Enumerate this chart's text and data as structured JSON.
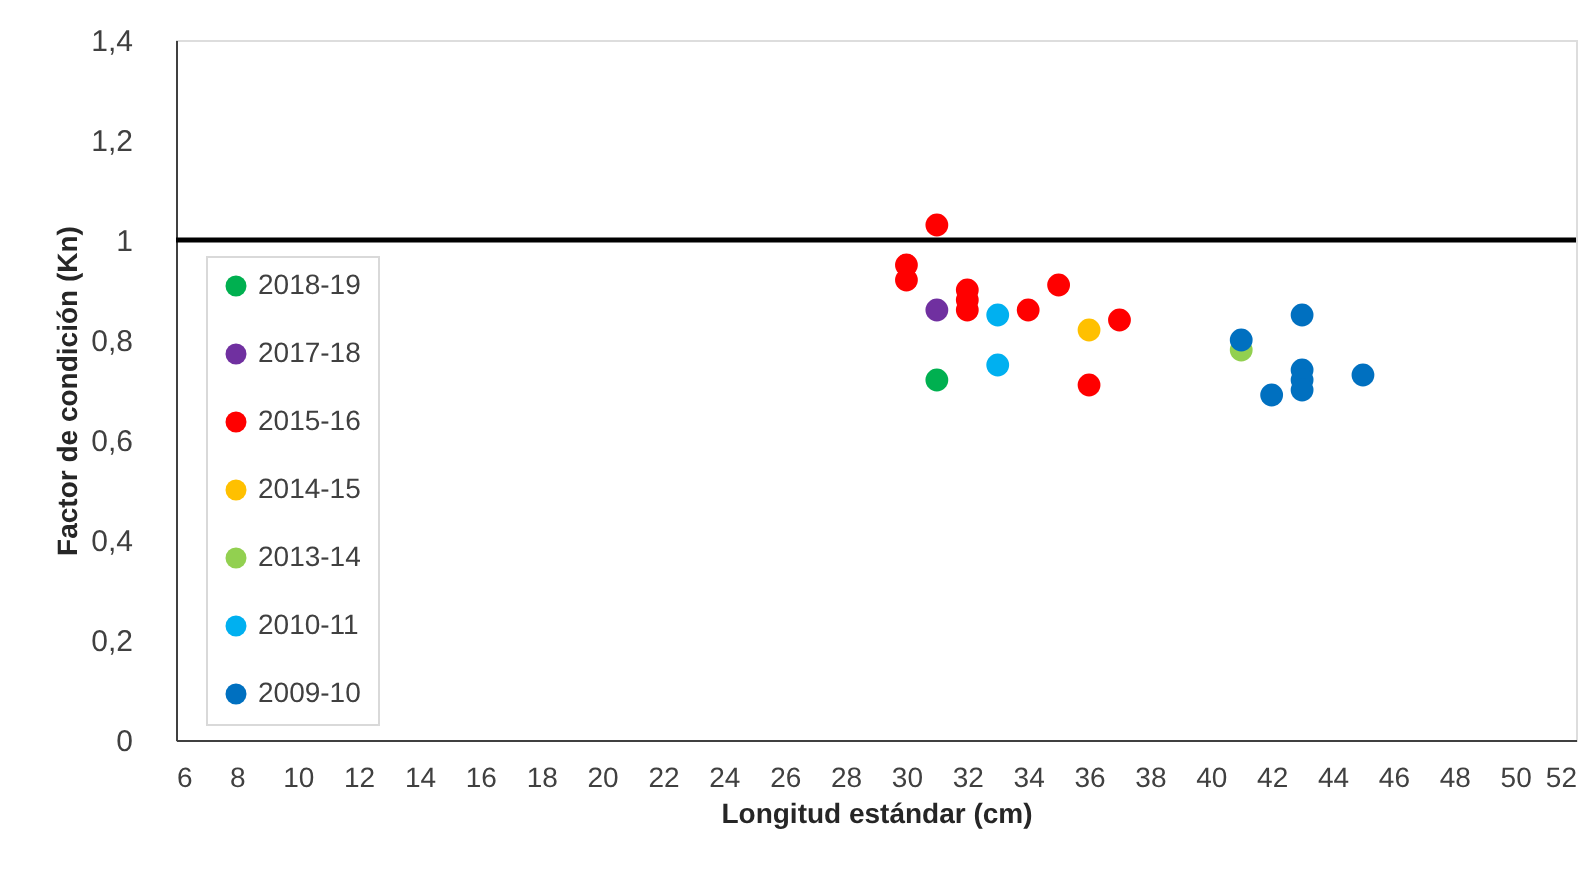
{
  "chart_data": {
    "type": "scatter",
    "xlabel": "Longitud estándar (cm)",
    "ylabel": "Factor de condición (Kn)",
    "xlim": [
      6,
      52
    ],
    "xticks": [
      6,
      8,
      10,
      12,
      14,
      16,
      18,
      20,
      22,
      24,
      26,
      28,
      30,
      32,
      34,
      36,
      38,
      40,
      42,
      44,
      46,
      48,
      50,
      52
    ],
    "ylim": [
      0,
      1.4
    ],
    "yticks": [
      {
        "value": 0,
        "label": "0"
      },
      {
        "value": 0.2,
        "label": "0,2"
      },
      {
        "value": 0.4,
        "label": "0,4"
      },
      {
        "value": 0.6,
        "label": "0,6"
      },
      {
        "value": 0.8,
        "label": "0,8"
      },
      {
        "value": 1,
        "label": "1"
      },
      {
        "value": 1.2,
        "label": "1,2"
      },
      {
        "value": 1.4,
        "label": "1,4"
      }
    ],
    "grid": false,
    "legend": "left",
    "marker": "circle",
    "ref_lines": [
      {
        "axis": "y",
        "value": 1,
        "color": "#000000"
      }
    ],
    "series": [
      {
        "name": "2018-19",
        "color": "#00b050",
        "x": [
          31
        ],
        "values": [
          0.72
        ]
      },
      {
        "name": "2017-18",
        "color": "#7030a0",
        "x": [
          31
        ],
        "values": [
          0.86
        ]
      },
      {
        "name": "2015-16",
        "color": "#ff0000",
        "x": [
          31,
          30,
          30,
          32,
          32,
          32,
          34,
          35,
          37,
          36
        ],
        "values": [
          1.03,
          0.95,
          0.92,
          0.9,
          0.88,
          0.86,
          0.86,
          0.91,
          0.84,
          0.71
        ]
      },
      {
        "name": "2014-15",
        "color": "#ffc000",
        "x": [
          36
        ],
        "values": [
          0.82
        ]
      },
      {
        "name": "2013-14",
        "color": "#92d050",
        "x": [
          41
        ],
        "values": [
          0.78
        ]
      },
      {
        "name": "2010-11",
        "color": "#00b0f0",
        "x": [
          33,
          33
        ],
        "values": [
          0.85,
          0.75
        ]
      },
      {
        "name": "2009-10",
        "color": "#0070c0",
        "x": [
          41,
          43,
          43,
          43,
          43,
          42,
          45
        ],
        "values": [
          0.8,
          0.85,
          0.74,
          0.72,
          0.7,
          0.69,
          0.73
        ]
      }
    ]
  }
}
